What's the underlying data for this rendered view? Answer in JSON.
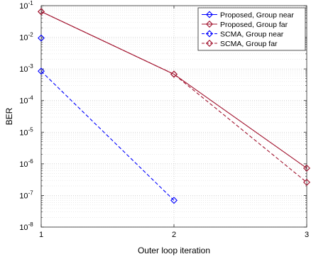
{
  "chart_data": {
    "type": "line",
    "xlabel": "Outer loop iteration",
    "ylabel": "BER",
    "y_scale": "log",
    "xlim": [
      1,
      3
    ],
    "ylim": [
      1e-08,
      0.1
    ],
    "x_ticks": [
      "1",
      "2",
      "3"
    ],
    "y_ticks": [
      {
        "base": "10",
        "exp": "-8"
      },
      {
        "base": "10",
        "exp": "-7"
      },
      {
        "base": "10",
        "exp": "-6"
      },
      {
        "base": "10",
        "exp": "-5"
      },
      {
        "base": "10",
        "exp": "-4"
      },
      {
        "base": "10",
        "exp": "-3"
      },
      {
        "base": "10",
        "exp": "-2"
      },
      {
        "base": "10",
        "exp": "-1"
      }
    ],
    "grid": true,
    "legend_position": "top-right",
    "series": [
      {
        "name": "Proposed, Group near",
        "color": "#0000ff",
        "line_style": "solid",
        "marker": "diamond",
        "x": [
          1
        ],
        "y": [
          0.0095
        ]
      },
      {
        "name": "Proposed, Group far",
        "color": "#a2142f",
        "line_style": "solid",
        "marker": "diamond",
        "x": [
          1,
          2,
          3
        ],
        "y": [
          0.065,
          0.00068,
          7.3e-07
        ]
      },
      {
        "name": "SCMA, Group near",
        "color": "#0000ff",
        "line_style": "dashed",
        "marker": "diamond",
        "x": [
          1,
          2
        ],
        "y": [
          0.00085,
          7e-08
        ]
      },
      {
        "name": "SCMA, Group far",
        "color": "#a2142f",
        "line_style": "dashed",
        "marker": "diamond",
        "x": [
          1,
          2,
          3
        ],
        "y": [
          0.065,
          0.00068,
          2.6e-07
        ]
      }
    ]
  }
}
